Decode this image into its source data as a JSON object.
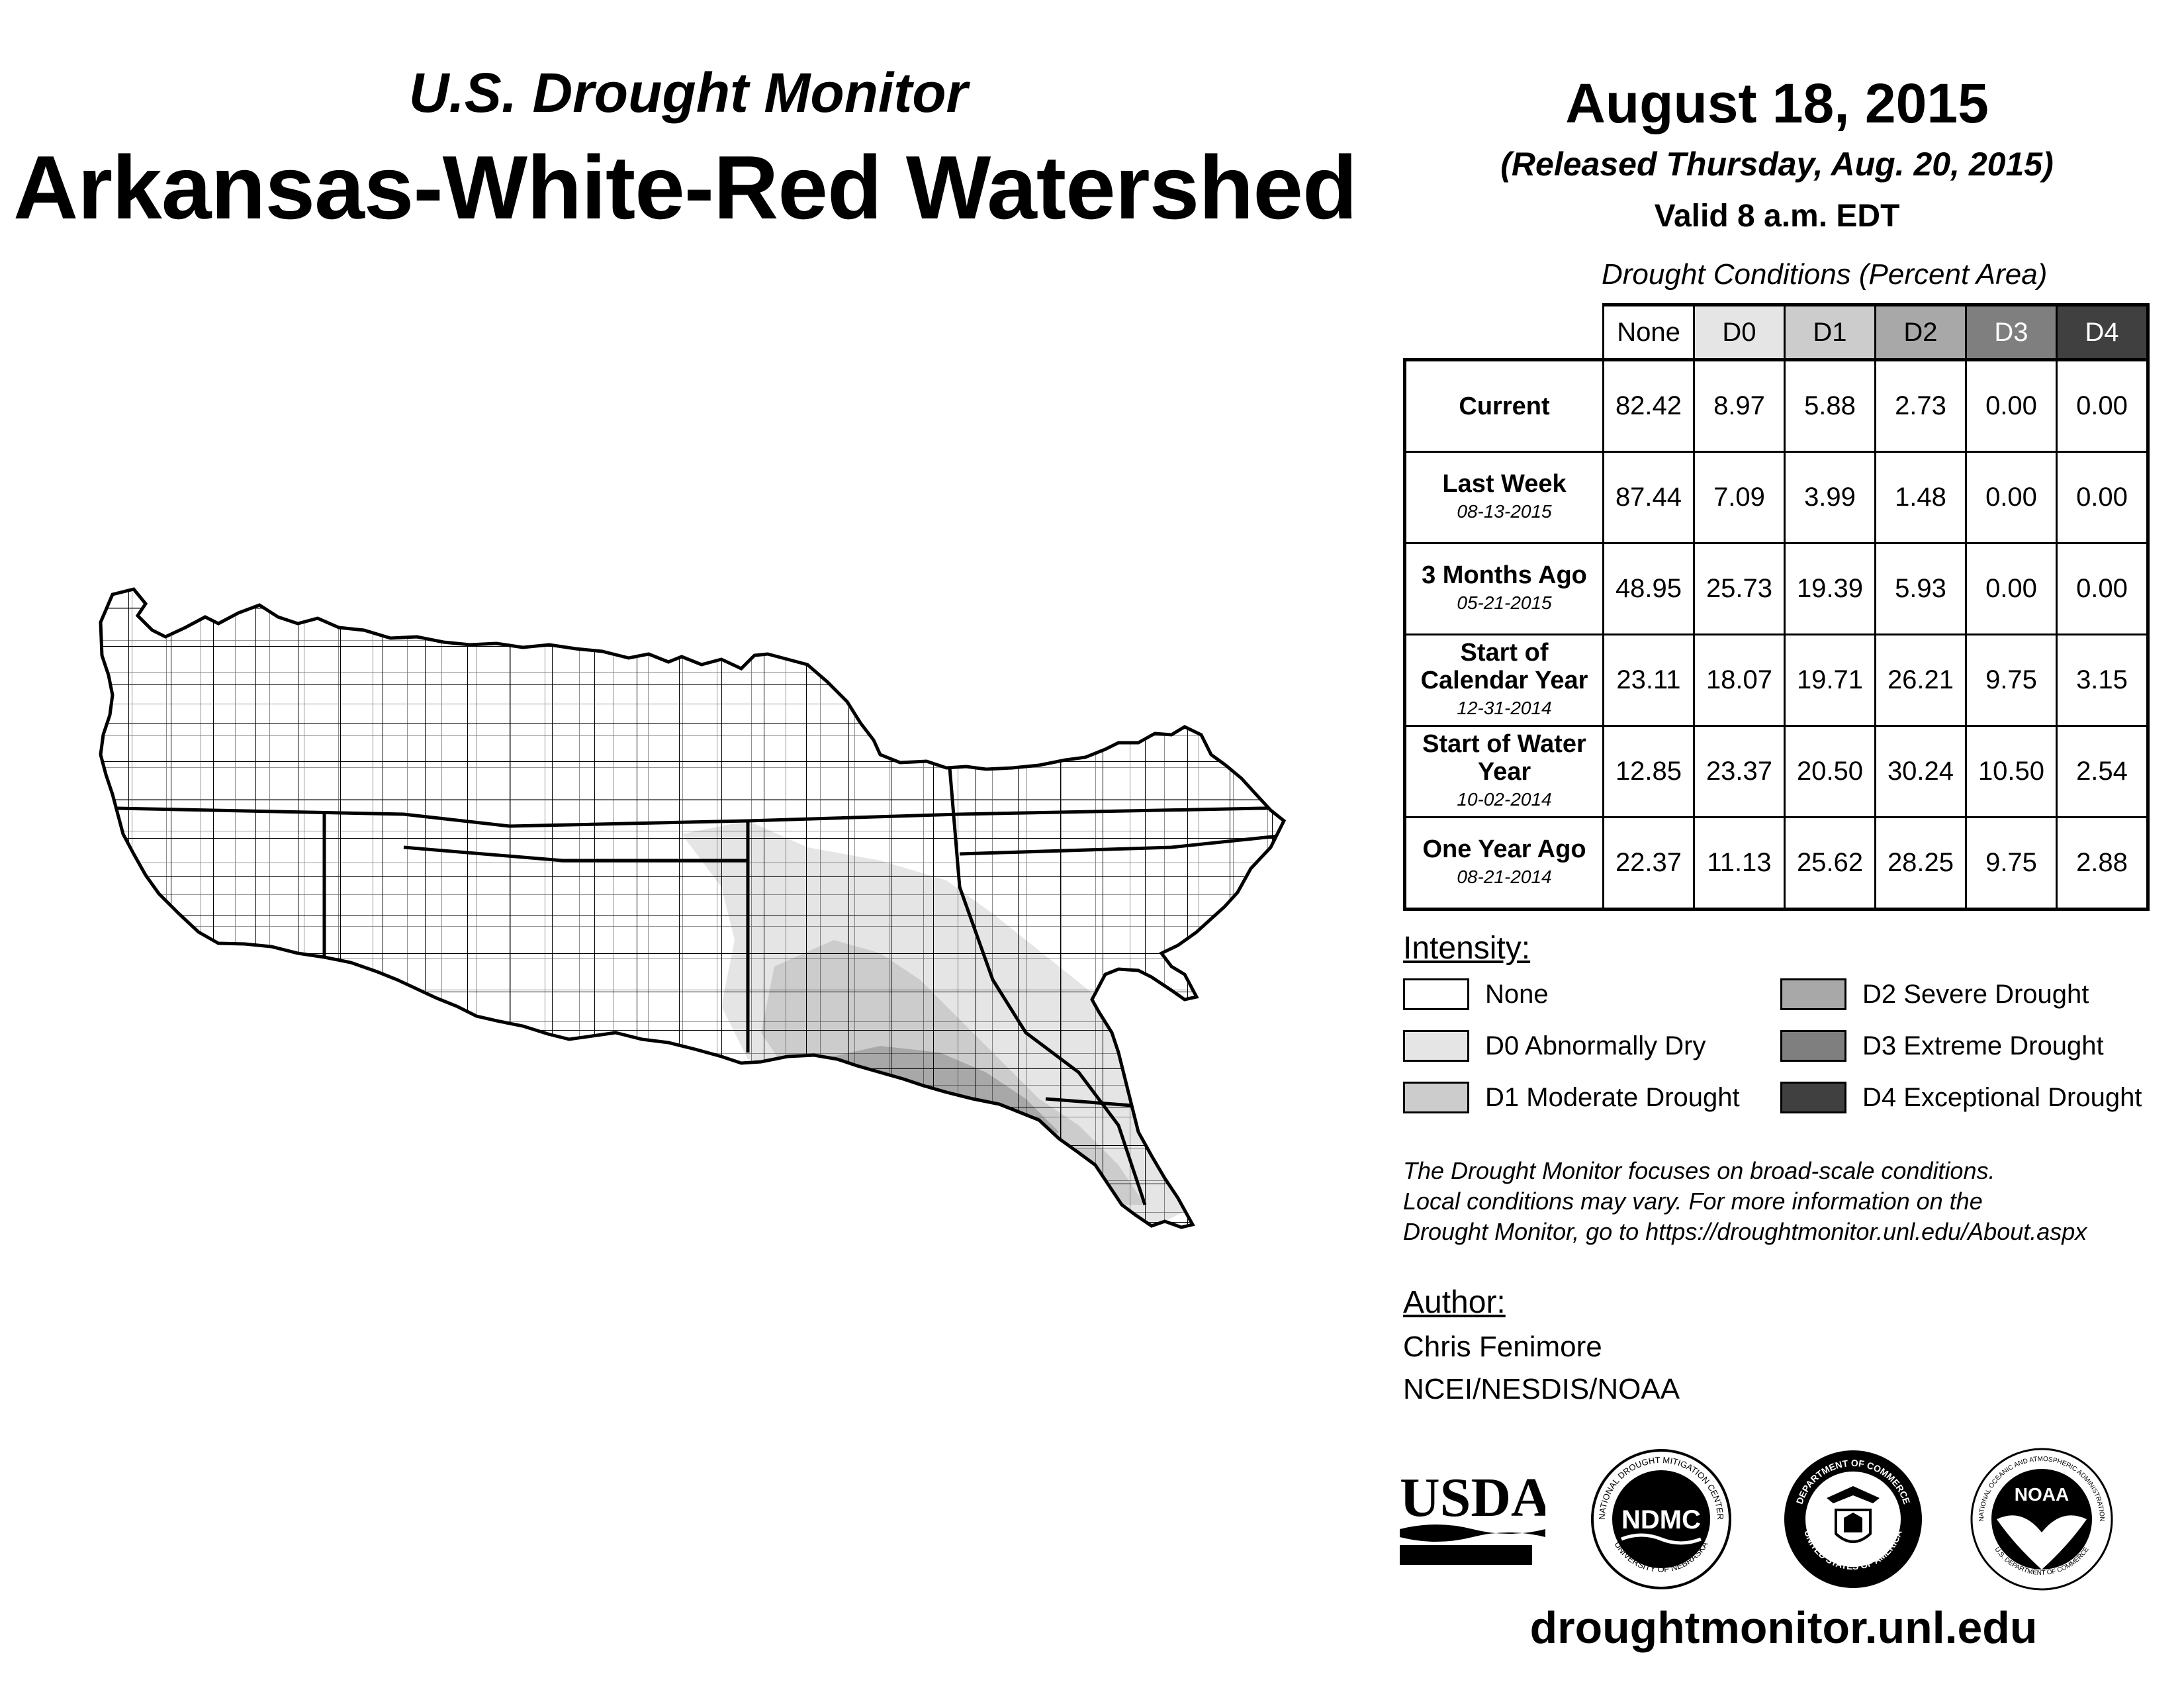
{
  "header": {
    "subtitle": "U.S. Drought Monitor",
    "title": "Arkansas-White-Red Watershed"
  },
  "date": {
    "main": "August 18, 2015",
    "released": "(Released Thursday, Aug. 20, 2015)",
    "valid": "Valid 8 a.m. EDT"
  },
  "table": {
    "caption": "Drought Conditions (Percent Area)",
    "columns": [
      "None",
      "D0",
      "D1",
      "D2",
      "D3",
      "D4"
    ],
    "column_colors": [
      "#ffffff",
      "#e5e5e5",
      "#cccccc",
      "#a8a8a8",
      "#7f7f7f",
      "#404040"
    ],
    "column_text_colors": [
      "#000000",
      "#000000",
      "#000000",
      "#000000",
      "#ffffff",
      "#ffffff"
    ],
    "rows": [
      {
        "label": "Current",
        "date": "",
        "values": [
          "82.42",
          "8.97",
          "5.88",
          "2.73",
          "0.00",
          "0.00"
        ]
      },
      {
        "label": "Last Week",
        "date": "08-13-2015",
        "values": [
          "87.44",
          "7.09",
          "3.99",
          "1.48",
          "0.00",
          "0.00"
        ]
      },
      {
        "label": "3 Months Ago",
        "date": "05-21-2015",
        "values": [
          "48.95",
          "25.73",
          "19.39",
          "5.93",
          "0.00",
          "0.00"
        ]
      },
      {
        "label": "Start of Calendar Year",
        "date": "12-31-2014",
        "values": [
          "23.11",
          "18.07",
          "19.71",
          "26.21",
          "9.75",
          "3.15"
        ]
      },
      {
        "label": "Start of Water Year",
        "date": "10-02-2014",
        "values": [
          "12.85",
          "23.37",
          "20.50",
          "30.24",
          "10.50",
          "2.54"
        ]
      },
      {
        "label": "One Year Ago",
        "date": "08-21-2014",
        "values": [
          "22.37",
          "11.13",
          "25.62",
          "28.25",
          "9.75",
          "2.88"
        ]
      }
    ]
  },
  "intensity": {
    "heading": "Intensity:",
    "items": [
      {
        "label": "None",
        "color": "#ffffff"
      },
      {
        "label": "D0 Abnormally Dry",
        "color": "#e5e5e5"
      },
      {
        "label": "D1 Moderate Drought",
        "color": "#cccccc"
      },
      {
        "label": "D2 Severe Drought",
        "color": "#a8a8a8"
      },
      {
        "label": "D3 Extreme Drought",
        "color": "#7f7f7f"
      },
      {
        "label": "D4 Exceptional Drought",
        "color": "#404040"
      }
    ]
  },
  "disclaimer": {
    "line1": "The Drought Monitor focuses on broad-scale conditions.",
    "line2": "Local conditions may vary. For more information on the",
    "line3": "Drought Monitor, go to https://droughtmonitor.unl.edu/About.aspx"
  },
  "author": {
    "heading": "Author:",
    "name": "Chris Fenimore",
    "org": "NCEI/NESDIS/NOAA"
  },
  "logos": {
    "usda": "USDA",
    "ndmc": "NDMC",
    "ndmc_ring_top": "NATIONAL DROUGHT MITIGATION CENTER",
    "ndmc_ring_bottom": "UNIVERSITY OF NEBRASKA",
    "doc_ring_top": "DEPARTMENT OF COMMERCE",
    "doc_ring_bottom": "UNITED STATES OF AMERICA",
    "noaa": "NOAA",
    "noaa_ring_top": "NATIONAL OCEANIC AND ATMOSPHERIC ADMINISTRATION",
    "noaa_ring_bottom": "U.S. DEPARTMENT OF COMMERCE"
  },
  "website": "droughtmonitor.unl.edu"
}
